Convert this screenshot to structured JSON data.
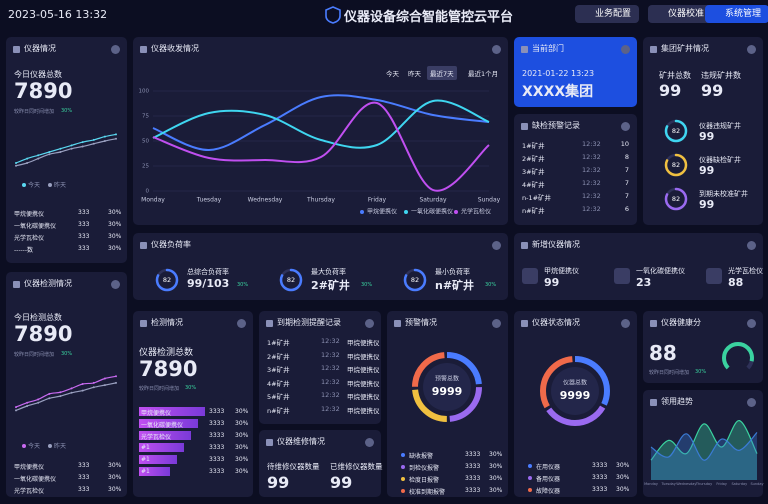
{
  "header": {
    "datetime": "2023-05-16 13:32",
    "title": "仪器设备综合智能管控云平台",
    "buttons": [
      "业务配置",
      "仪器校准",
      "系统管理"
    ]
  },
  "instrument": {
    "title": "仪器情况",
    "label": "今日仪器总数",
    "value": 7890,
    "note": "较昨日同时间增加",
    "change": "30%",
    "spark": {
      "ylim": [
        0,
        100
      ],
      "series": [
        {
          "name": "今天",
          "color": "#5ad8f0",
          "values": [
            20,
            28,
            34,
            40,
            46,
            52,
            58,
            62,
            68,
            72
          ]
        },
        {
          "name": "昨天",
          "color": "#9aa0c0",
          "values": [
            15,
            20,
            28,
            36,
            40,
            46,
            50,
            55,
            60,
            64
          ]
        }
      ]
    },
    "rows": [
      [
        "甲烷便携仪",
        333,
        "30%"
      ],
      [
        "一氧化碳便携仪",
        333,
        "30%"
      ],
      [
        "光学瓦检仪",
        333,
        "30%"
      ],
      [
        "------数",
        333,
        "30%"
      ]
    ]
  },
  "detect": {
    "title": "仪器检测情况",
    "label": "今日检测总数",
    "value": 7890,
    "note": "较昨日同时间增加",
    "change": "30%",
    "spark": {
      "ylim": [
        0,
        100
      ],
      "series": [
        {
          "name": "今天",
          "color": "#c86af0",
          "values": [
            18,
            26,
            32,
            42,
            45,
            52,
            60,
            62,
            70,
            74
          ]
        },
        {
          "name": "昨天",
          "color": "#9aa0c0",
          "values": [
            12,
            20,
            26,
            34,
            38,
            44,
            48,
            54,
            58,
            62
          ]
        }
      ]
    },
    "rows": [
      [
        "甲烷便携仪",
        333,
        "30%"
      ],
      [
        "一氧化碳便携仪",
        333,
        "30%"
      ],
      [
        "光学瓦检仪",
        333,
        "30%"
      ]
    ]
  },
  "send": {
    "title": "仪器收发情况",
    "tabs": [
      "今天",
      "昨天",
      "最近7天",
      "最近1个月"
    ],
    "chart": {
      "type": "line",
      "categories": [
        "Monday",
        "Tuesday",
        "Wednesday",
        "Thursday",
        "Friday",
        "Saturday",
        "Sunday"
      ],
      "ylim": [
        0,
        100
      ],
      "yticks": [
        0,
        25,
        50,
        75,
        100
      ],
      "grid": true,
      "series": [
        {
          "name": "甲烷便携仪",
          "color": "#4a7cff",
          "values": [
            63,
            41,
            66,
            94,
            91,
            76,
            69
          ]
        },
        {
          "name": "一氧化碳便携仪",
          "color": "#3fd6f0",
          "values": [
            53,
            78,
            76,
            51,
            46,
            90,
            69
          ]
        },
        {
          "name": "光学瓦检仪",
          "color": "#c04ff0",
          "values": [
            54,
            33,
            31,
            34,
            88,
            1,
            46
          ]
        }
      ]
    }
  },
  "load": {
    "title": "仪器负荷率",
    "items": [
      {
        "label": "总综合负荷率",
        "value": "99/103",
        "pct": 82,
        "change": "30%"
      },
      {
        "label": "最大负荷率",
        "value": "2#矿井",
        "pct": 82,
        "change": "30%"
      },
      {
        "label": "最小负荷率",
        "value": "n#矿井",
        "pct": 82,
        "change": "30%"
      }
    ]
  },
  "dept": {
    "title": "当前部门",
    "datetime": "2021-01-22 13:23",
    "name": "XXXX集团"
  },
  "mine": {
    "title": "集团矿井情况",
    "total_label": "矿井总数",
    "total": 99,
    "violate_label": "违规矿井数",
    "violate": 99,
    "items": [
      {
        "label": "仪器违规矿井",
        "value": 99,
        "pct": 82,
        "color": "#3fd6f0"
      },
      {
        "label": "仪器缺检矿井",
        "value": 99,
        "pct": 82,
        "color": "#f0c040"
      },
      {
        "label": "到期未校准矿井",
        "value": 99,
        "pct": 82,
        "color": "#9a6af0"
      }
    ]
  },
  "shortage": {
    "title": "缺检预警记录",
    "rows": [
      [
        "1#矿井",
        "12:32",
        10
      ],
      [
        "2#矿井",
        "12:32",
        8
      ],
      [
        "3#矿井",
        "12:32",
        7
      ],
      [
        "4#矿井",
        "12:32",
        7
      ],
      [
        "n-1#矿井",
        "12:32",
        7
      ],
      [
        "n#矿井",
        "12:32",
        6
      ]
    ]
  },
  "new_inst": {
    "title": "新增仪器情况",
    "items": [
      [
        "甲烷便携仪",
        99
      ],
      [
        "一氧化碳便携仪",
        23
      ],
      [
        "光学瓦检仪",
        88
      ]
    ]
  },
  "detection": {
    "title": "检测情况",
    "label": "仪器检测总数",
    "value": 7890,
    "note": "较昨日同时间增加",
    "change": "30%",
    "rows": [
      [
        "甲烷便携仪",
        3333,
        "30%"
      ],
      [
        "一氧化碳便携仪",
        3333,
        "30%"
      ],
      [
        "光学瓦检仪",
        3333,
        "30%"
      ],
      [
        "#1",
        3333,
        "30%"
      ],
      [
        "#1",
        3333,
        "30%"
      ],
      [
        "#1",
        3333,
        "30%"
      ]
    ]
  },
  "due": {
    "title": "到期检测提醒记录",
    "rows": [
      [
        "1#矿井",
        "12:32",
        "甲烷便携仪"
      ],
      [
        "2#矿井",
        "12:32",
        "甲烷便携仪"
      ],
      [
        "3#矿井",
        "12:32",
        "甲烷便携仪"
      ],
      [
        "4#矿井",
        "12:32",
        "甲烷便携仪"
      ],
      [
        "5#矿井",
        "12:32",
        "甲烷便携仪"
      ],
      [
        "n#矿井",
        "12:32",
        "甲烷便携仪"
      ]
    ]
  },
  "maint": {
    "title": "仪器维修情况",
    "items": [
      [
        "待维修仪器数量",
        99
      ],
      [
        "已维修仪器数量",
        99
      ]
    ]
  },
  "warning": {
    "title": "预警情况",
    "center_label": "预警总数",
    "center_value": 9999,
    "rows": [
      {
        "label": "缺收报警",
        "count": 3333,
        "pct": "30%",
        "color": "#4a7cff"
      },
      {
        "label": "到检仪报警",
        "count": 3333,
        "pct": "30%",
        "color": "#9a6af0"
      },
      {
        "label": "检度日报警",
        "count": 3333,
        "pct": "30%",
        "color": "#f0c040"
      },
      {
        "label": "校准到期报警",
        "count": 3333,
        "pct": "30%",
        "color": "#f06a4a"
      }
    ]
  },
  "status": {
    "title": "仪器状态情况",
    "center_label": "仪器总数",
    "center_value": 9999,
    "rows": [
      {
        "label": "在用仪器",
        "count": 3333,
        "pct": "30%",
        "color": "#4a7cff"
      },
      {
        "label": "备用仪器",
        "count": 3333,
        "pct": "30%",
        "color": "#9a6af0"
      },
      {
        "label": "故障仪器",
        "count": 3333,
        "pct": "30%",
        "color": "#f06a4a"
      }
    ]
  },
  "health": {
    "title": "仪器健康分",
    "value": 88,
    "note": "较昨日同时间增加",
    "change": "30%"
  },
  "trend": {
    "title": "领用趋势",
    "categories": [
      "Monday",
      "Tuesday",
      "Wednesday",
      "Thursday",
      "Friday",
      "Saturday",
      "Sunday"
    ],
    "ylim": [
      0,
      100
    ],
    "series": [
      {
        "color": "#3ad29f",
        "values": [
          30,
          60,
          40,
          85,
          50,
          90,
          40
        ]
      },
      {
        "color": "#3a7bd5",
        "values": [
          50,
          35,
          70,
          30,
          62,
          45,
          72
        ]
      }
    ]
  }
}
